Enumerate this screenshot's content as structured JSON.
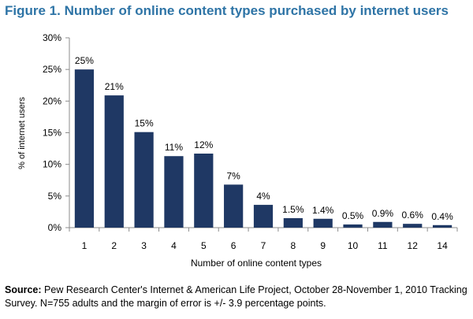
{
  "title": "Figure 1. Number of online content types purchased by internet users",
  "footer": {
    "source_label": "Source:",
    "source_text": "Pew Research Center's Internet & American Life Project, October 28-November 1, 2010 Tracking Survey. N=755 adults and the margin of error is +/- 3.9 percentage points."
  },
  "chart_data": {
    "type": "bar",
    "title": "Figure 1. Number of online content types purchased by internet users",
    "xlabel": "Number of online content types",
    "ylabel": "% of internet users",
    "categories": [
      "1",
      "2",
      "3",
      "4",
      "5",
      "6",
      "7",
      "8",
      "9",
      "10",
      "11",
      "12",
      "14"
    ],
    "values": [
      25,
      21,
      15,
      11,
      12,
      7,
      4,
      1.5,
      1.4,
      0.5,
      0.9,
      0.6,
      0.4
    ],
    "plotted_values": [
      25,
      20.9,
      15.1,
      11.3,
      11.7,
      6.8,
      3.6,
      1.5,
      1.4,
      0.5,
      0.9,
      0.6,
      0.4
    ],
    "data_labels": [
      "25%",
      "21%",
      "15%",
      "11%",
      "12%",
      "7%",
      "4%",
      "1.5%",
      "1.4%",
      "0.5%",
      "0.9%",
      "0.6%",
      "0.4%"
    ],
    "yticks": [
      "0%",
      "5%",
      "10%",
      "15%",
      "20%",
      "25%",
      "30%"
    ],
    "ylim": [
      0,
      30
    ],
    "grid": false,
    "legend": "none",
    "bar_color": "#1f3864"
  }
}
